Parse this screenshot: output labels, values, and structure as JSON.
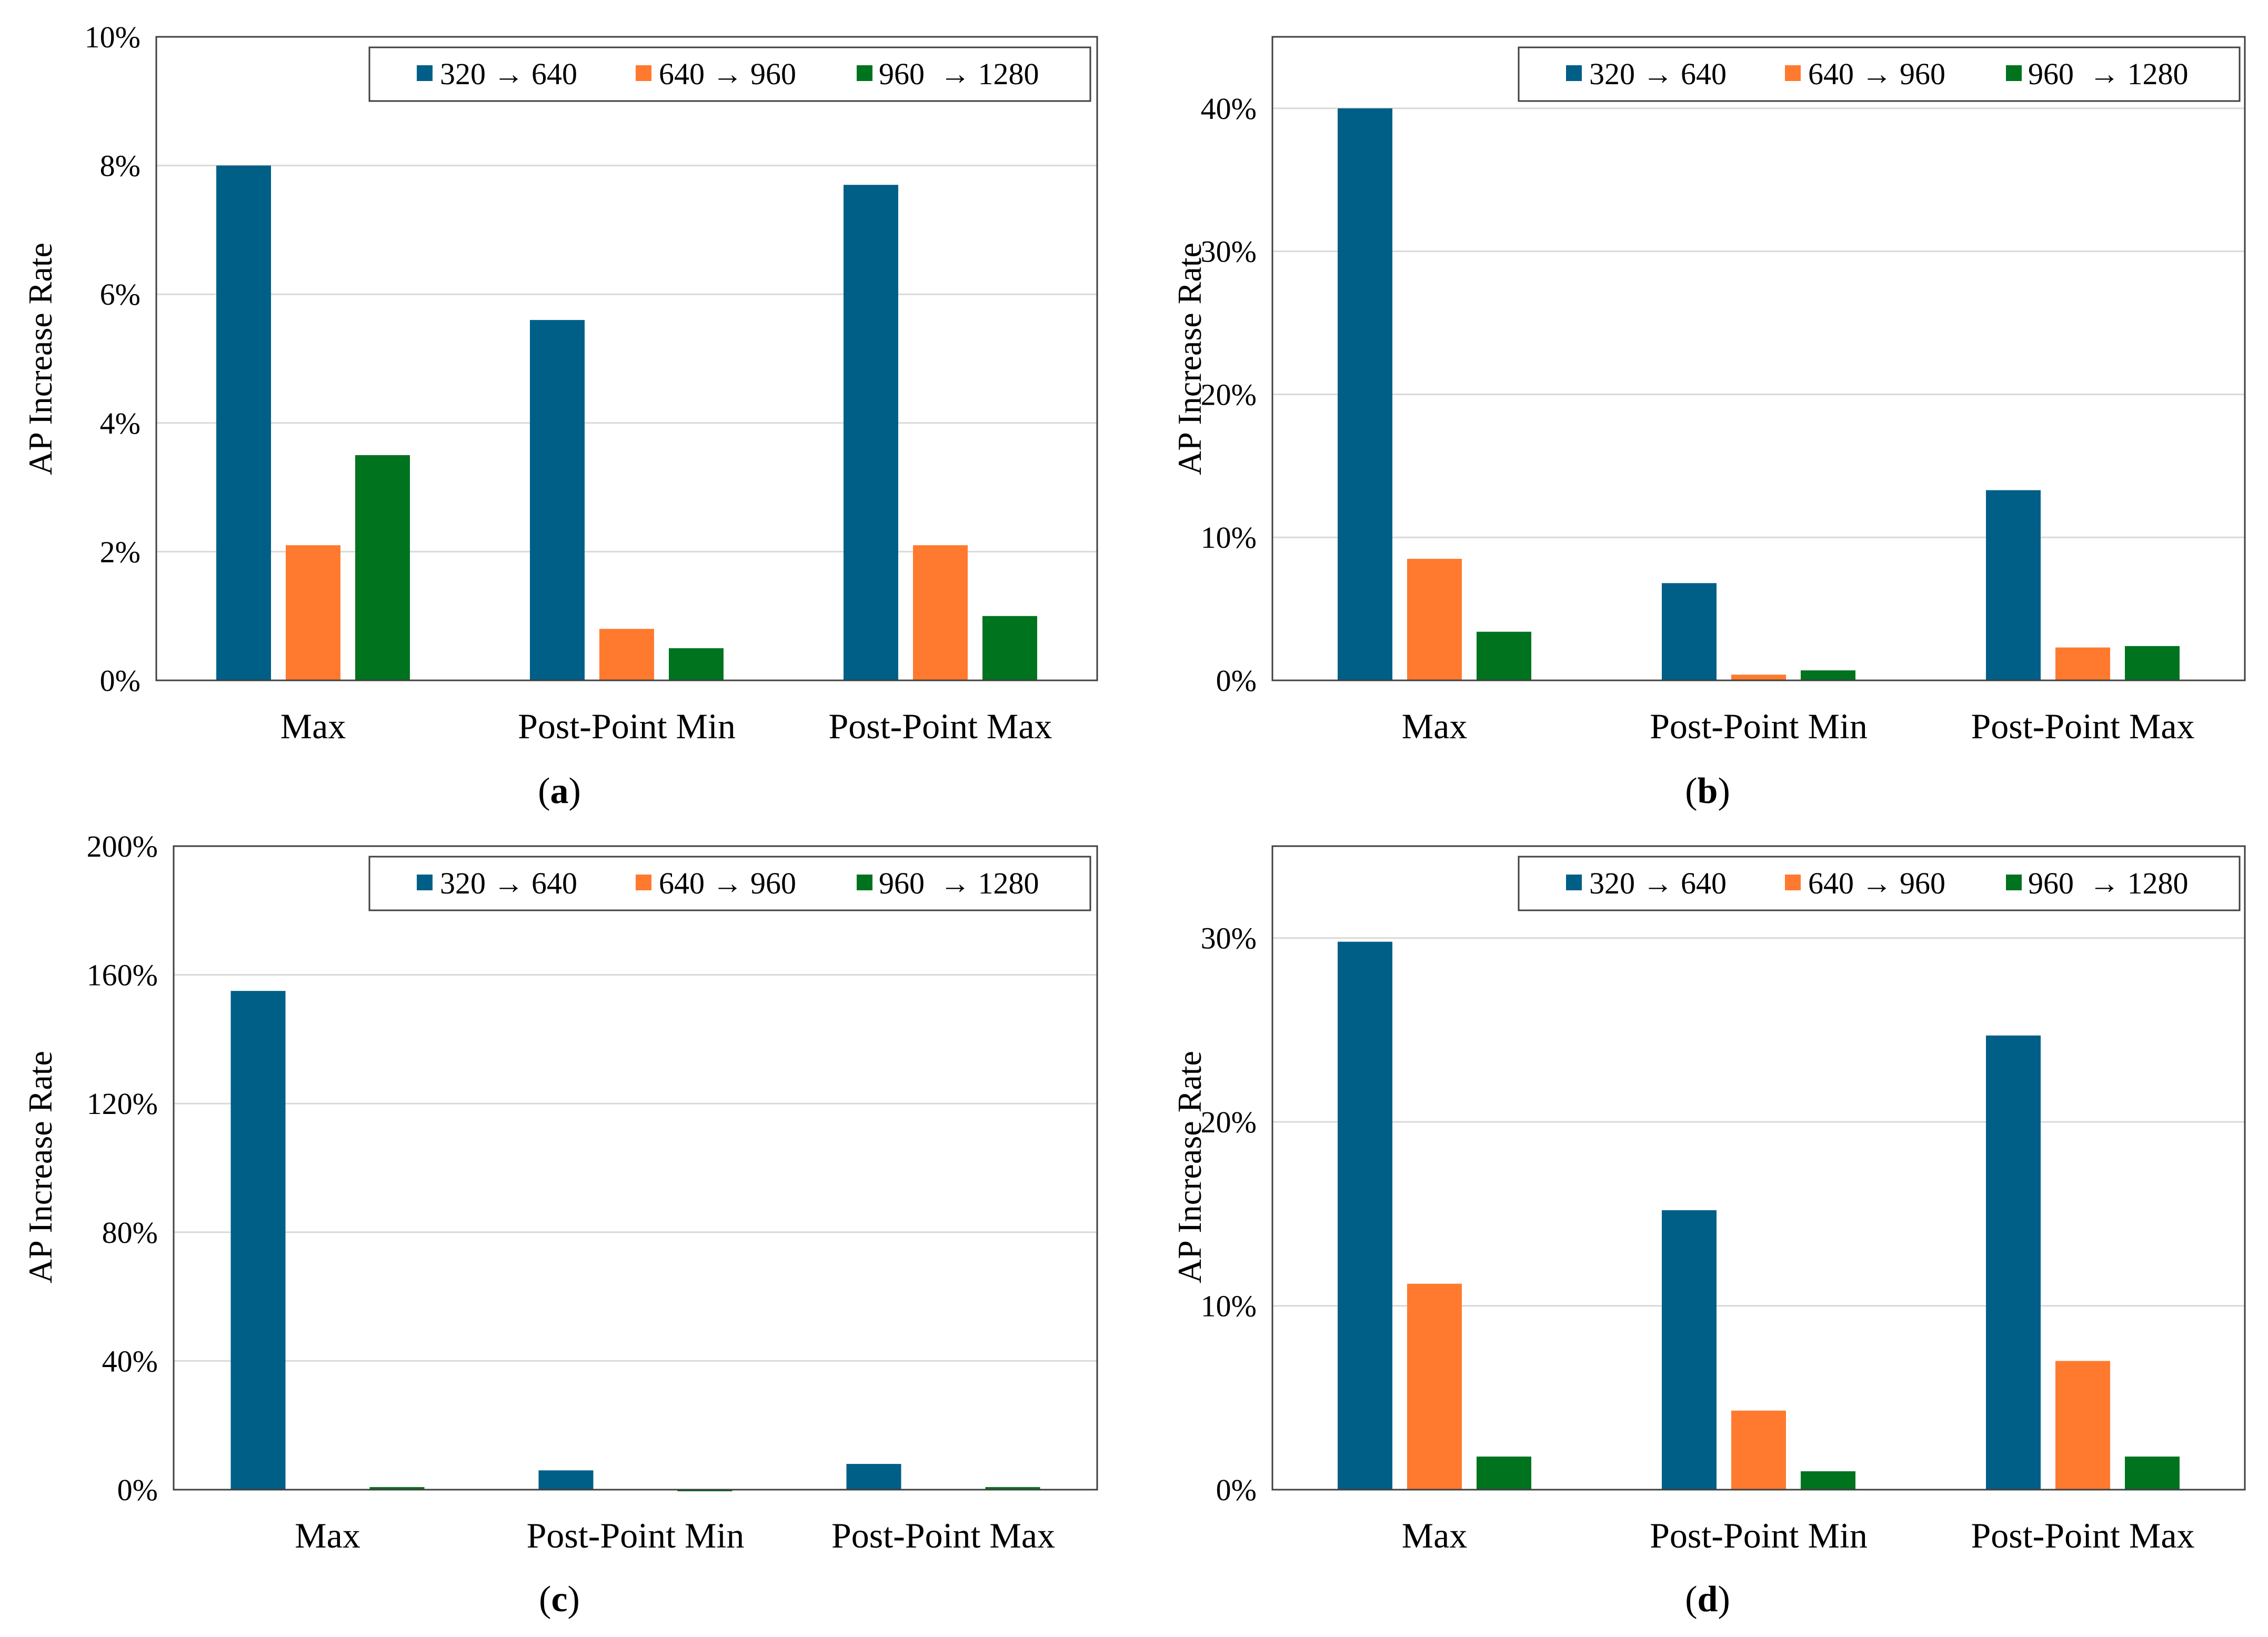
{
  "figure": {
    "panels": [
      {
        "label_open": "(",
        "label_letter": "a",
        "label_close": ")"
      },
      {
        "label_open": "(",
        "label_letter": "b",
        "label_close": ")"
      },
      {
        "label_open": "(",
        "label_letter": "c",
        "label_close": ")"
      },
      {
        "label_open": "(",
        "label_letter": "d",
        "label_close": ")"
      }
    ]
  },
  "colors": {
    "series": [
      "#005F87",
      "#FF7A2F",
      "#00731F"
    ],
    "grid": "#D9D9D9",
    "axis": "#404040"
  },
  "chart_data": [
    {
      "type": "bar",
      "title": "",
      "xlabel": "",
      "ylabel": "AP Increase Rate",
      "categories": [
        "Max",
        "Post-Point Min",
        "Post-Point Max"
      ],
      "series": [
        {
          "name": "320 → 640",
          "values": [
            8.0,
            5.6,
            7.7
          ]
        },
        {
          "name": "640 → 960",
          "values": [
            2.1,
            0.8,
            2.1
          ]
        },
        {
          "name": "960  → 1280",
          "values": [
            3.5,
            0.5,
            1.0
          ]
        }
      ],
      "ylim": [
        0,
        10
      ],
      "yticks": [
        0,
        2,
        4,
        6,
        8,
        10
      ],
      "ytick_labels": [
        "0%",
        "2%",
        "4%",
        "6%",
        "8%",
        "10%"
      ],
      "legend": "top-right",
      "grid": true
    },
    {
      "type": "bar",
      "title": "",
      "xlabel": "",
      "ylabel": "AP Increase Rate",
      "categories": [
        "Max",
        "Post-Point Min",
        "Post-Point Max"
      ],
      "series": [
        {
          "name": "320 → 640",
          "values": [
            40.0,
            6.8,
            13.3
          ]
        },
        {
          "name": "640 → 960",
          "values": [
            8.5,
            0.4,
            2.3
          ]
        },
        {
          "name": "960  → 1280",
          "values": [
            3.4,
            0.7,
            2.4
          ]
        }
      ],
      "ylim": [
        0,
        45
      ],
      "yticks": [
        0,
        10,
        20,
        30,
        40
      ],
      "ytick_labels": [
        "0%",
        "10%",
        "20%",
        "30%",
        "40%"
      ],
      "legend": "top-right",
      "grid": true
    },
    {
      "type": "bar",
      "title": "",
      "xlabel": "",
      "ylabel": "AP Increase Rate",
      "categories": [
        "Max",
        "Post-Point Min",
        "Post-Point Max"
      ],
      "series": [
        {
          "name": "320 → 640",
          "values": [
            155.0,
            6.0,
            8.0
          ]
        },
        {
          "name": "640 → 960",
          "values": [
            0.0,
            0.0,
            0.0
          ]
        },
        {
          "name": "960  → 1280",
          "values": [
            0.8,
            -0.5,
            0.8
          ]
        }
      ],
      "ylim": [
        0,
        200
      ],
      "yticks": [
        0,
        40,
        80,
        120,
        160,
        200
      ],
      "ytick_labels": [
        "0%",
        "40%",
        "80%",
        "120%",
        "160%",
        "200%"
      ],
      "legend": "top-right",
      "grid": true
    },
    {
      "type": "bar",
      "title": "",
      "xlabel": "",
      "ylabel": "AP Increase Rate",
      "categories": [
        "Max",
        "Post-Point Min",
        "Post-Point Max"
      ],
      "series": [
        {
          "name": "320 → 640",
          "values": [
            29.8,
            15.2,
            24.7
          ]
        },
        {
          "name": "640 → 960",
          "values": [
            11.2,
            4.3,
            7.0
          ]
        },
        {
          "name": "960  → 1280",
          "values": [
            1.8,
            1.0,
            1.8
          ]
        }
      ],
      "ylim": [
        0,
        35
      ],
      "yticks": [
        0,
        10,
        20,
        30
      ],
      "ytick_labels": [
        "0%",
        "10%",
        "20%",
        "30%"
      ],
      "legend": "top-right",
      "grid": true
    }
  ]
}
